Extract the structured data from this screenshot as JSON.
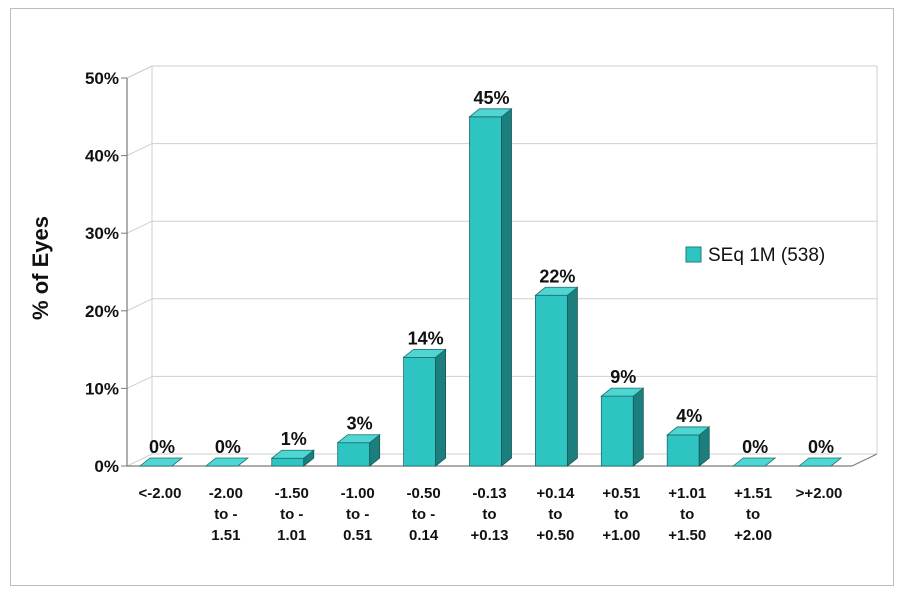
{
  "chart_data": {
    "type": "bar",
    "title": "",
    "ylabel": "% of Eyes",
    "xlabel": "",
    "ylim": [
      0,
      50
    ],
    "yticks": [
      "0%",
      "10%",
      "20%",
      "30%",
      "40%",
      "50%"
    ],
    "categories": [
      [
        "<-2.00"
      ],
      [
        "-2.00",
        "to -",
        "1.51"
      ],
      [
        "-1.50",
        "to -",
        "1.01"
      ],
      [
        "-1.00",
        "to -",
        "0.51"
      ],
      [
        "-0.50",
        "to -",
        "0.14"
      ],
      [
        "-0.13",
        "to",
        "+0.13"
      ],
      [
        "+0.14",
        "to",
        "+0.50"
      ],
      [
        "+0.51",
        "to",
        "+1.00"
      ],
      [
        "+1.01",
        "to",
        "+1.50"
      ],
      [
        "+1.51",
        "to",
        "+2.00"
      ],
      [
        ">+2.00"
      ]
    ],
    "series": [
      {
        "name": "SEq 1M (538)",
        "values": [
          0,
          0,
          1,
          3,
          14,
          45,
          22,
          9,
          4,
          0,
          0
        ],
        "labels": [
          "0%",
          "0%",
          "1%",
          "3%",
          "14%",
          "45%",
          "22%",
          "9%",
          "4%",
          "0%",
          "0%"
        ]
      }
    ],
    "legend": "right",
    "grid": true,
    "colors": {
      "front": "#2ec4c1",
      "side": "#1c7f7d",
      "top": "#4fd6d3",
      "grid": "#cfcfcf",
      "axis": "#7a7a7a"
    }
  }
}
